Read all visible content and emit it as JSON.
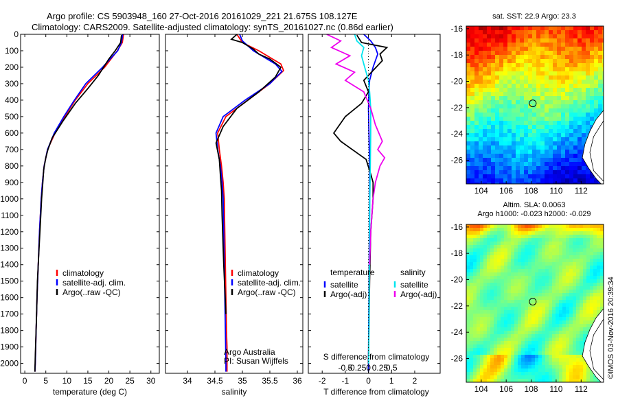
{
  "header": {
    "title_line1": "Argo profile: CS 5903948_160 27-Oct-2016 20161029_221 21.675S 108.127E",
    "title_line2": "Climatology: CARS2009. Satellite-adjusted climatology: synTS_20161027.nc (0.86d earlier)"
  },
  "footer": {
    "credit": "©IMOS 03-Nov-2016 20:39:34"
  },
  "colors": {
    "climatology": "#ff0000",
    "satellite": "#0000ff",
    "argo": "#000000",
    "satellite_salinity": "#00e5ee",
    "argo_salinity": "#ee00ee"
  },
  "chart_data": [
    {
      "type": "line",
      "panel": "temperature",
      "xlabel": "temperature (deg C)",
      "ylabel": "",
      "xlim": [
        -1,
        32
      ],
      "ylim": [
        2060,
        0
      ],
      "xticks": [
        "0",
        "5",
        "10",
        "15",
        "20",
        "25",
        "30"
      ],
      "yticks": [
        "0",
        "100",
        "200",
        "300",
        "400",
        "500",
        "600",
        "700",
        "800",
        "900",
        "1000",
        "1100",
        "1200",
        "1300",
        "1400",
        "1500",
        "1600",
        "1700",
        "1800",
        "1900",
        "2000"
      ],
      "legend_position": "lower-center",
      "series": [
        {
          "name": "climatology",
          "color": "#ff0000",
          "x": [
            23.5,
            23.2,
            22.0,
            19.0,
            15.0,
            12.0,
            9.5,
            7.2,
            5.4,
            4.6,
            4.2,
            3.9,
            3.5,
            3.2,
            2.9,
            2.7,
            2.5,
            2.4
          ],
          "y": [
            0,
            50,
            100,
            200,
            300,
            400,
            500,
            600,
            700,
            800,
            900,
            1000,
            1200,
            1400,
            1600,
            1800,
            2000,
            2050
          ]
        },
        {
          "name": "satellite-adj. clim.",
          "color": "#0000ff",
          "x": [
            23.3,
            23.0,
            22.1,
            18.5,
            14.5,
            11.8,
            9.3,
            7.0,
            5.4,
            4.6,
            4.2,
            3.9,
            3.5,
            3.2,
            2.9,
            2.7,
            2.5,
            2.4
          ],
          "y": [
            0,
            50,
            100,
            200,
            300,
            400,
            500,
            600,
            700,
            800,
            900,
            1000,
            1200,
            1400,
            1600,
            1800,
            2000,
            2050
          ]
        },
        {
          "name": "Argo(..raw -QC)",
          "color": "#000000",
          "x": [
            23.0,
            22.8,
            21.5,
            20.0,
            17.5,
            15.0,
            12.0,
            9.0,
            6.5,
            5.5,
            5.0,
            4.5,
            4.3,
            4.0,
            3.8,
            3.4,
            3.0,
            2.8,
            2.5,
            2.4
          ],
          "y": [
            5,
            50,
            100,
            150,
            250,
            330,
            420,
            530,
            630,
            700,
            750,
            820,
            900,
            1000,
            1100,
            1300,
            1500,
            1700,
            1950,
            2050
          ]
        }
      ]
    },
    {
      "type": "line",
      "panel": "salinity",
      "xlabel": "salinity",
      "xlim": [
        33.6,
        36.1
      ],
      "ylim": [
        2060,
        0
      ],
      "xticks": [
        "34",
        "34.5",
        "35",
        "35.5",
        "36"
      ],
      "legend_position": "lower-center",
      "annotations": [
        "Argo Australia",
        "PI: Susan Wijffels"
      ],
      "series": [
        {
          "name": "climatology",
          "color": "#ff0000",
          "x": [
            34.9,
            35.0,
            35.3,
            35.7,
            35.75,
            35.5,
            35.1,
            34.7,
            34.55,
            34.58,
            34.62,
            34.65,
            34.67,
            34.68,
            34.69,
            34.7,
            34.71,
            34.72,
            34.72,
            34.72
          ],
          "y": [
            0,
            50,
            100,
            180,
            220,
            300,
            400,
            500,
            600,
            700,
            800,
            900,
            1000,
            1200,
            1400,
            1600,
            1800,
            1900,
            2000,
            2050
          ]
        },
        {
          "name": "satellite-adj. clim.",
          "color": "#0000ff",
          "x": [
            34.95,
            35.0,
            35.2,
            35.6,
            35.72,
            35.5,
            35.05,
            34.65,
            34.52,
            34.55,
            34.6,
            34.63,
            34.65,
            34.66,
            34.67,
            34.68,
            34.69,
            34.7,
            34.7
          ],
          "y": [
            0,
            40,
            100,
            180,
            225,
            300,
            400,
            500,
            600,
            700,
            800,
            900,
            1000,
            1200,
            1400,
            1600,
            1800,
            2000,
            2050
          ]
        },
        {
          "name": "Argo(..raw -QC)",
          "color": "#000000",
          "x": [
            34.9,
            34.8,
            35.0,
            35.2,
            35.3,
            35.5,
            35.7,
            35.6,
            35.3,
            34.9,
            34.65,
            34.52,
            34.58,
            34.6,
            34.62,
            34.63,
            34.66,
            34.7
          ],
          "y": [
            0,
            30,
            50,
            90,
            120,
            150,
            200,
            260,
            350,
            450,
            560,
            660,
            760,
            860,
            950,
            1100,
            1400,
            1700
          ]
        }
      ]
    },
    {
      "type": "line",
      "panel": "difference",
      "xlabel": "T difference from climatology",
      "top_label": "S difference from climatology",
      "xlim": [
        -2.6,
        3.1
      ],
      "ylim": [
        2060,
        0
      ],
      "xticks": [
        "-2",
        "-1",
        "0",
        "1",
        "2"
      ],
      "top_ticks": [
        "-0.5",
        "-0.25",
        "0",
        "0.25",
        "0.5"
      ],
      "legend": {
        "temperature_heading": "temperature",
        "salinity_heading": "salinity",
        "entries": [
          {
            "name": "satellite",
            "color": "#0000ff",
            "group": "temperature"
          },
          {
            "name": "Argo(-adj)",
            "color": "#000000",
            "group": "temperature"
          },
          {
            "name": "satellite",
            "color": "#00e5ee",
            "group": "salinity"
          },
          {
            "name": "Argo(-adj)",
            "color": "#ee00ee",
            "group": "salinity"
          }
        ]
      },
      "series": [
        {
          "name": "satellite",
          "color": "#0000ff",
          "x": [
            -0.2,
            0.1,
            0.3,
            0.4,
            0.2,
            0.05,
            0.02,
            0.0,
            0.02,
            0.05,
            0.05,
            0.04,
            0.03,
            0.02,
            0.01,
            0.0,
            0.0
          ],
          "y": [
            0,
            40,
            80,
            120,
            200,
            280,
            350,
            450,
            600,
            800,
            1000,
            1200,
            1400,
            1600,
            1800,
            2000,
            2050
          ]
        },
        {
          "name": "Argo(-adj)",
          "color": "#000000",
          "x": [
            -0.5,
            -0.3,
            0.8,
            0.5,
            0.6,
            0.2,
            -0.2,
            0.0,
            -0.3,
            -1.0,
            -1.5,
            -1.2,
            -0.5,
            -0.1,
            0.1,
            0.2,
            0.2,
            0.1,
            0.05,
            0.0
          ],
          "y": [
            5,
            50,
            80,
            120,
            160,
            220,
            280,
            350,
            420,
            500,
            600,
            650,
            720,
            760,
            850,
            900,
            1000,
            1200,
            1500,
            2000
          ]
        },
        {
          "name": "satellite",
          "color": "#00e5ee",
          "x": [
            -0.6,
            -0.5,
            -0.2,
            -0.3,
            -0.2,
            -0.1,
            0.0,
            0.05,
            0.1,
            0.1,
            0.08,
            0.06,
            0.05,
            0.04,
            0.03,
            0.02,
            0.01
          ],
          "y": [
            0,
            40,
            80,
            130,
            180,
            230,
            280,
            350,
            450,
            600,
            800,
            1000,
            1200,
            1400,
            1600,
            1800,
            2000
          ]
        },
        {
          "name": "Argo(-adj)",
          "color": "#ee00ee",
          "x": [
            -1.8,
            -1.2,
            -1.6,
            -0.8,
            -1.4,
            -0.6,
            -1.0,
            -0.2,
            0.1,
            0.3,
            0.6,
            0.4,
            0.7,
            0.5,
            0.3,
            0.2,
            0.1,
            0.05
          ],
          "y": [
            0,
            40,
            80,
            130,
            180,
            230,
            280,
            350,
            450,
            550,
            650,
            700,
            750,
            800,
            900,
            1000,
            1200,
            1400
          ]
        }
      ]
    }
  ],
  "maps": {
    "sst": {
      "title": "sat. SST: 22.9 Argo: 23.3",
      "lon_ticks": [
        "104",
        "106",
        "108",
        "110",
        "112"
      ],
      "lat_ticks": [
        "-16",
        "-18",
        "-20",
        "-22",
        "-24",
        "-26"
      ],
      "lonlim": [
        102.8,
        113.8
      ],
      "latlim": [
        -27.8,
        -15.8
      ],
      "argo_position": {
        "lon": 108.127,
        "lat": -21.675
      }
    },
    "sla": {
      "title_line1": "Altim. SLA: 0.0063",
      "title_line2": "Argo h1000: -0.023 h2000: -0.029",
      "lon_ticks": [
        "104",
        "106",
        "108",
        "110",
        "112"
      ],
      "lat_ticks": [
        "-16",
        "-18",
        "-20",
        "-22",
        "-24",
        "-26"
      ],
      "lonlim": [
        102.8,
        113.8
      ],
      "latlim": [
        -27.8,
        -15.8
      ],
      "argo_position": {
        "lon": 108.127,
        "lat": -21.675
      }
    }
  }
}
